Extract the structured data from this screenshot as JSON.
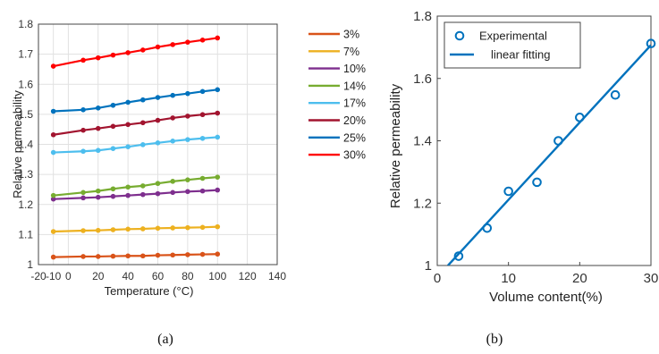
{
  "captions": {
    "a": "(a)",
    "b": "(b)"
  },
  "chart_data": [
    {
      "type": "line",
      "title": "",
      "xlabel": "Temperature (°C)",
      "ylabel": "Relative permeability",
      "xlim": [
        -20,
        140
      ],
      "ylim": [
        1,
        1.8
      ],
      "xticks": [
        -20,
        -10,
        0,
        20,
        40,
        60,
        80,
        100,
        120,
        140
      ],
      "yticks": [
        1,
        1.1,
        1.2,
        1.3,
        1.4,
        1.5,
        1.6,
        1.7,
        1.8
      ],
      "grid": true,
      "legend_position": "right, outside",
      "x": [
        -10,
        10,
        20,
        30,
        40,
        50,
        60,
        70,
        80,
        90,
        100
      ],
      "series": [
        {
          "name": "3%",
          "color": "#d95319",
          "values": [
            1.025,
            1.027,
            1.027,
            1.028,
            1.029,
            1.029,
            1.031,
            1.032,
            1.033,
            1.034,
            1.035
          ]
        },
        {
          "name": "7%",
          "color": "#edb120",
          "values": [
            1.11,
            1.113,
            1.114,
            1.116,
            1.118,
            1.119,
            1.121,
            1.122,
            1.123,
            1.124,
            1.126
          ]
        },
        {
          "name": "10%",
          "color": "#7e2f8e",
          "values": [
            1.218,
            1.222,
            1.224,
            1.227,
            1.23,
            1.233,
            1.236,
            1.24,
            1.243,
            1.245,
            1.248
          ]
        },
        {
          "name": "14%",
          "color": "#77ac30",
          "values": [
            1.23,
            1.24,
            1.245,
            1.252,
            1.258,
            1.262,
            1.27,
            1.277,
            1.282,
            1.287,
            1.291
          ]
        },
        {
          "name": "17%",
          "color": "#4dbeee",
          "values": [
            1.373,
            1.377,
            1.38,
            1.386,
            1.392,
            1.399,
            1.405,
            1.411,
            1.416,
            1.42,
            1.424
          ]
        },
        {
          "name": "20%",
          "color": "#a2142f",
          "values": [
            1.432,
            1.447,
            1.453,
            1.46,
            1.466,
            1.472,
            1.48,
            1.488,
            1.494,
            1.499,
            1.504
          ]
        },
        {
          "name": "25%",
          "color": "#0072bd",
          "values": [
            1.51,
            1.515,
            1.521,
            1.53,
            1.54,
            1.548,
            1.556,
            1.563,
            1.569,
            1.576,
            1.582
          ]
        },
        {
          "name": "30%",
          "color": "#ff0000",
          "values": [
            1.66,
            1.68,
            1.688,
            1.697,
            1.705,
            1.714,
            1.724,
            1.732,
            1.74,
            1.747,
            1.754
          ]
        }
      ]
    },
    {
      "type": "scatter",
      "title": "",
      "xlabel": "Volume content(%)",
      "ylabel": "Relative permeability",
      "xlim": [
        0,
        30
      ],
      "ylim": [
        1,
        1.8
      ],
      "xticks": [
        0,
        10,
        20,
        30
      ],
      "yticks": [
        1,
        1.2,
        1.4,
        1.6,
        1.8
      ],
      "grid": false,
      "legend_position": "top-left",
      "color": "#0072bd",
      "series": [
        {
          "name": "Experimental",
          "kind": "markers",
          "x": [
            3,
            7,
            10,
            14,
            17,
            20,
            25,
            30
          ],
          "values": [
            1.03,
            1.12,
            1.238,
            1.267,
            1.4,
            1.475,
            1.547,
            1.712
          ]
        },
        {
          "name": "linear fitting",
          "kind": "line",
          "x": [
            1.5,
            30
          ],
          "values": [
            1.0,
            1.707
          ]
        }
      ]
    }
  ]
}
